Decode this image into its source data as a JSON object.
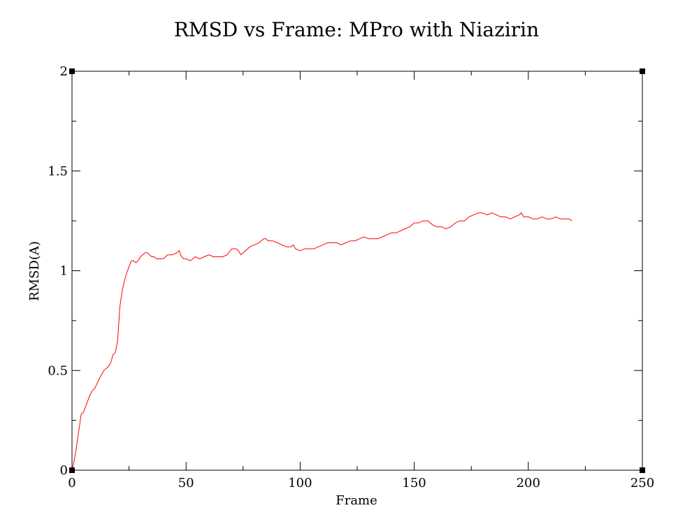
{
  "chart_data": {
    "type": "line",
    "title": "RMSD vs Frame: MPro with Niazirin",
    "xlabel": "Frame",
    "ylabel": "RMSD(A)",
    "xlim": [
      0,
      250
    ],
    "ylim": [
      0,
      2
    ],
    "x_ticks": [
      0,
      50,
      100,
      150,
      200,
      250
    ],
    "y_ticks": [
      0,
      0.5,
      1,
      1.5,
      2
    ],
    "x_tick_labels": [
      "0",
      "50",
      "100",
      "150",
      "200",
      "250"
    ],
    "y_tick_labels": [
      "0",
      "0.5",
      "1",
      "1.5",
      "2"
    ],
    "x_minor_step": 25,
    "y_minor_step": 0.25,
    "grid": false,
    "legend": "none",
    "series": [
      {
        "color": "#ff0000",
        "x": [
          0,
          1,
          2,
          3,
          4,
          5,
          6,
          7,
          8,
          9,
          10,
          12,
          14,
          16,
          17,
          18,
          19,
          20,
          21,
          22,
          23,
          24,
          25,
          26,
          27,
          28,
          29,
          30,
          31,
          32,
          33,
          34,
          35,
          36,
          37,
          38,
          40,
          42,
          44,
          46,
          47,
          48,
          49,
          50,
          52,
          54,
          56,
          58,
          60,
          62,
          64,
          66,
          68,
          70,
          71,
          72,
          73,
          74,
          75,
          76,
          78,
          80,
          82,
          84,
          85,
          86,
          88,
          90,
          92,
          94,
          96,
          97,
          98,
          100,
          102,
          104,
          106,
          108,
          110,
          112,
          114,
          116,
          118,
          120,
          122,
          124,
          126,
          128,
          130,
          132,
          134,
          136,
          138,
          140,
          142,
          144,
          146,
          148,
          150,
          152,
          154,
          156,
          158,
          160,
          162,
          164,
          166,
          168,
          170,
          172,
          174,
          176,
          178,
          180,
          182,
          184,
          186,
          188,
          190,
          192,
          194,
          196,
          197,
          198,
          200,
          202,
          204,
          206,
          208,
          210,
          212,
          214,
          216,
          218,
          219
        ],
        "y": [
          0.0,
          0.05,
          0.12,
          0.2,
          0.28,
          0.29,
          0.32,
          0.35,
          0.38,
          0.4,
          0.41,
          0.46,
          0.5,
          0.52,
          0.54,
          0.58,
          0.59,
          0.65,
          0.82,
          0.9,
          0.95,
          0.99,
          1.02,
          1.05,
          1.05,
          1.04,
          1.05,
          1.07,
          1.08,
          1.09,
          1.09,
          1.08,
          1.07,
          1.07,
          1.06,
          1.06,
          1.06,
          1.08,
          1.08,
          1.09,
          1.1,
          1.07,
          1.06,
          1.06,
          1.05,
          1.07,
          1.06,
          1.07,
          1.08,
          1.07,
          1.07,
          1.07,
          1.08,
          1.11,
          1.11,
          1.11,
          1.1,
          1.08,
          1.09,
          1.1,
          1.12,
          1.13,
          1.14,
          1.16,
          1.16,
          1.15,
          1.15,
          1.14,
          1.13,
          1.12,
          1.12,
          1.13,
          1.11,
          1.1,
          1.11,
          1.11,
          1.11,
          1.12,
          1.13,
          1.14,
          1.14,
          1.14,
          1.13,
          1.14,
          1.15,
          1.15,
          1.16,
          1.17,
          1.16,
          1.16,
          1.16,
          1.17,
          1.18,
          1.19,
          1.19,
          1.2,
          1.21,
          1.22,
          1.24,
          1.24,
          1.25,
          1.25,
          1.23,
          1.22,
          1.22,
          1.21,
          1.22,
          1.24,
          1.25,
          1.25,
          1.27,
          1.28,
          1.29,
          1.29,
          1.28,
          1.29,
          1.28,
          1.27,
          1.27,
          1.26,
          1.27,
          1.28,
          1.29,
          1.27,
          1.27,
          1.26,
          1.26,
          1.27,
          1.26,
          1.26,
          1.27,
          1.26,
          1.26,
          1.26,
          1.25
        ]
      }
    ]
  }
}
